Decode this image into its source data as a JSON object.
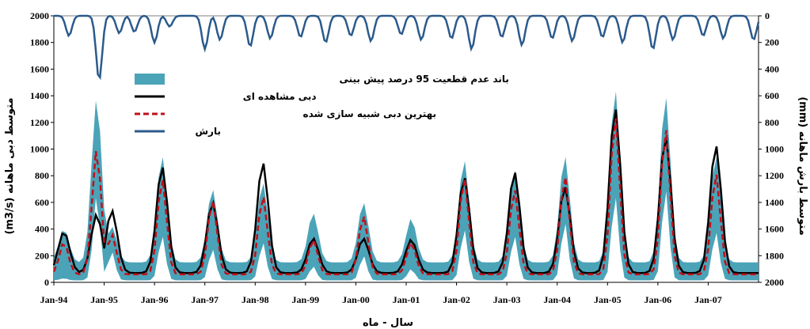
{
  "chart_data": {
    "type": "line",
    "x_labels": [
      "Jan-94",
      "Jan-95",
      "Jan-96",
      "Jan-97",
      "Jan-98",
      "Jan-99",
      "Jan-00",
      "Jan-01",
      "Jan-02",
      "Jan-03",
      "Jan-04",
      "Jan-05",
      "Jan-06",
      "Jan-07"
    ],
    "xlabel": "سال - ماه",
    "ylabel_left": "متوسط دبی ماهانه  (m3/s)",
    "ylabel_right": "متوسط بارش ماهانه  (mm)",
    "y_left_ticks": [
      "0",
      "200",
      "400",
      "600",
      "800",
      "1000",
      "1200",
      "1400",
      "1600",
      "1800",
      "2000"
    ],
    "y_right_ticks": [
      "0",
      "200",
      "400",
      "600",
      "800",
      "1000",
      "1200",
      "1400",
      "1600",
      "1800",
      "2000"
    ],
    "ylim_left": [
      0,
      2000
    ],
    "ylim_right_inverted": [
      0,
      2000
    ],
    "legend": {
      "position": "upper-left",
      "entries": [
        {
          "key": "band",
          "label": "باند عدم قطعیت 95 درصد پیش بینی",
          "color": "#4BA3B8"
        },
        {
          "key": "observed",
          "label": "دبی مشاهده ای",
          "color": "#000000"
        },
        {
          "key": "simulated",
          "label": "بهترین دبی شبیه سازی شده",
          "color": "#C0101A"
        },
        {
          "key": "precip",
          "label": "بارش",
          "color": "#2B5A8C"
        }
      ]
    },
    "peaks": {
      "years_decimal": [
        1994.2,
        1994.85,
        1995.15,
        1996.15,
        1997.15,
        1998.15,
        1999.15,
        2000.15,
        2001.1,
        2002.15,
        2003.15,
        2004.15,
        2005.15,
        2006.15,
        2007.15
      ],
      "observed": [
        380,
        510,
        540,
        870,
        600,
        900,
        330,
        330,
        320,
        790,
        830,
        720,
        1310,
        1100,
        1030
      ],
      "simulated": [
        300,
        1000,
        360,
        780,
        620,
        650,
        320,
        500,
        300,
        790,
        700,
        800,
        1250,
        1160,
        820
      ],
      "band_upper": [
        400,
        1380,
        420,
        950,
        700,
        750,
        520,
        600,
        480,
        920,
        850,
        950,
        1450,
        1400,
        950
      ],
      "band_lower": [
        30,
        650,
        230,
        350,
        250,
        300,
        120,
        200,
        100,
        400,
        350,
        450,
        650,
        700,
        380
      ],
      "baseflow": 70
    },
    "precip_dips": {
      "years_decimal": [
        1994.3,
        1994.9,
        1995.3,
        1995.6,
        1996.0,
        1996.3,
        1997.0,
        1997.3,
        1997.9,
        1998.3,
        1998.9,
        1999.4,
        1999.9,
        2000.3,
        2000.9,
        2001.3,
        2001.9,
        2002.3,
        2002.9,
        2003.3,
        2003.9,
        2004.3,
        2004.9,
        2005.3,
        2005.9,
        2006.3,
        2006.9,
        2007.3,
        2007.9
      ],
      "values_mm": [
        150,
        480,
        130,
        120,
        200,
        80,
        250,
        180,
        230,
        170,
        160,
        200,
        150,
        190,
        140,
        180,
        170,
        250,
        160,
        220,
        170,
        190,
        160,
        200,
        250,
        180,
        150,
        170,
        180
      ]
    }
  }
}
